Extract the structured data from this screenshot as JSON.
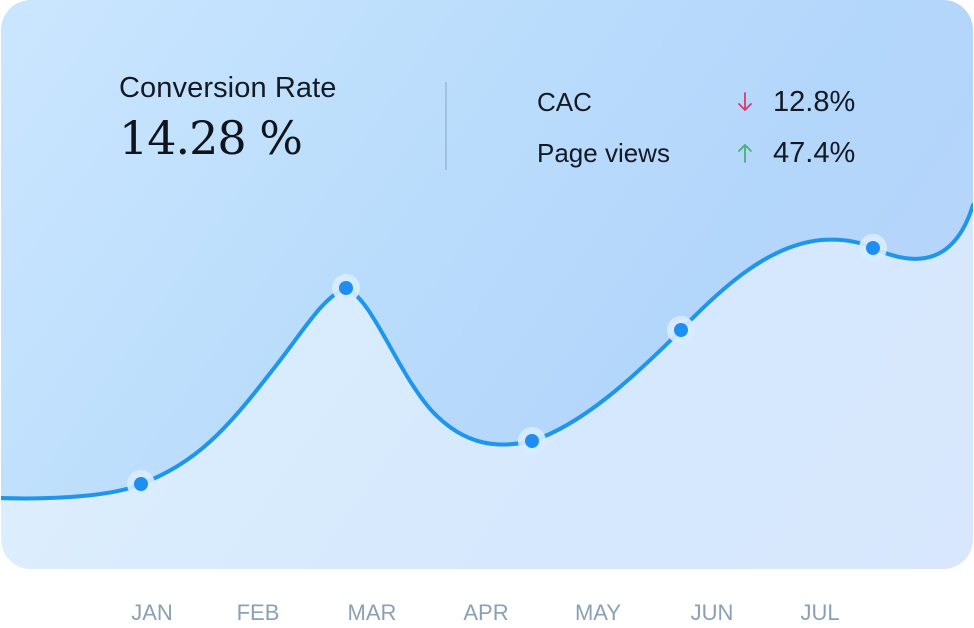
{
  "header": {
    "title": "Conversion Rate",
    "value": "14.28 %"
  },
  "metrics": [
    {
      "label": "CAC",
      "direction": "down",
      "value": "12.8%",
      "color": "#e0366f"
    },
    {
      "label": "Page views",
      "direction": "up",
      "value": "47.4%",
      "color": "#46b07a"
    }
  ],
  "colors": {
    "line": "#1e96ec",
    "point": "#1e8ff0",
    "halo": "#d8ecff",
    "axis_text": "#8aa0b6"
  },
  "chart_data": {
    "type": "line",
    "categories": [
      "JAN",
      "FEB",
      "MAR",
      "APR",
      "MAY",
      "JUN",
      "JUL"
    ],
    "series": [
      {
        "values": [
          null,
          null,
          null,
          null,
          null,
          null,
          null
        ]
      }
    ],
    "points": [
      {
        "x": "JAN",
        "y": 0.12
      },
      {
        "x": "MAR",
        "y": 0.57
      },
      {
        "x": "APR",
        "y": 0.25
      },
      {
        "x": "MAY",
        "y": 0.48
      },
      {
        "x": "JUN",
        "y": 0.66
      }
    ],
    "xlabel": "",
    "ylabel": "",
    "grid": false,
    "legend": "none"
  }
}
